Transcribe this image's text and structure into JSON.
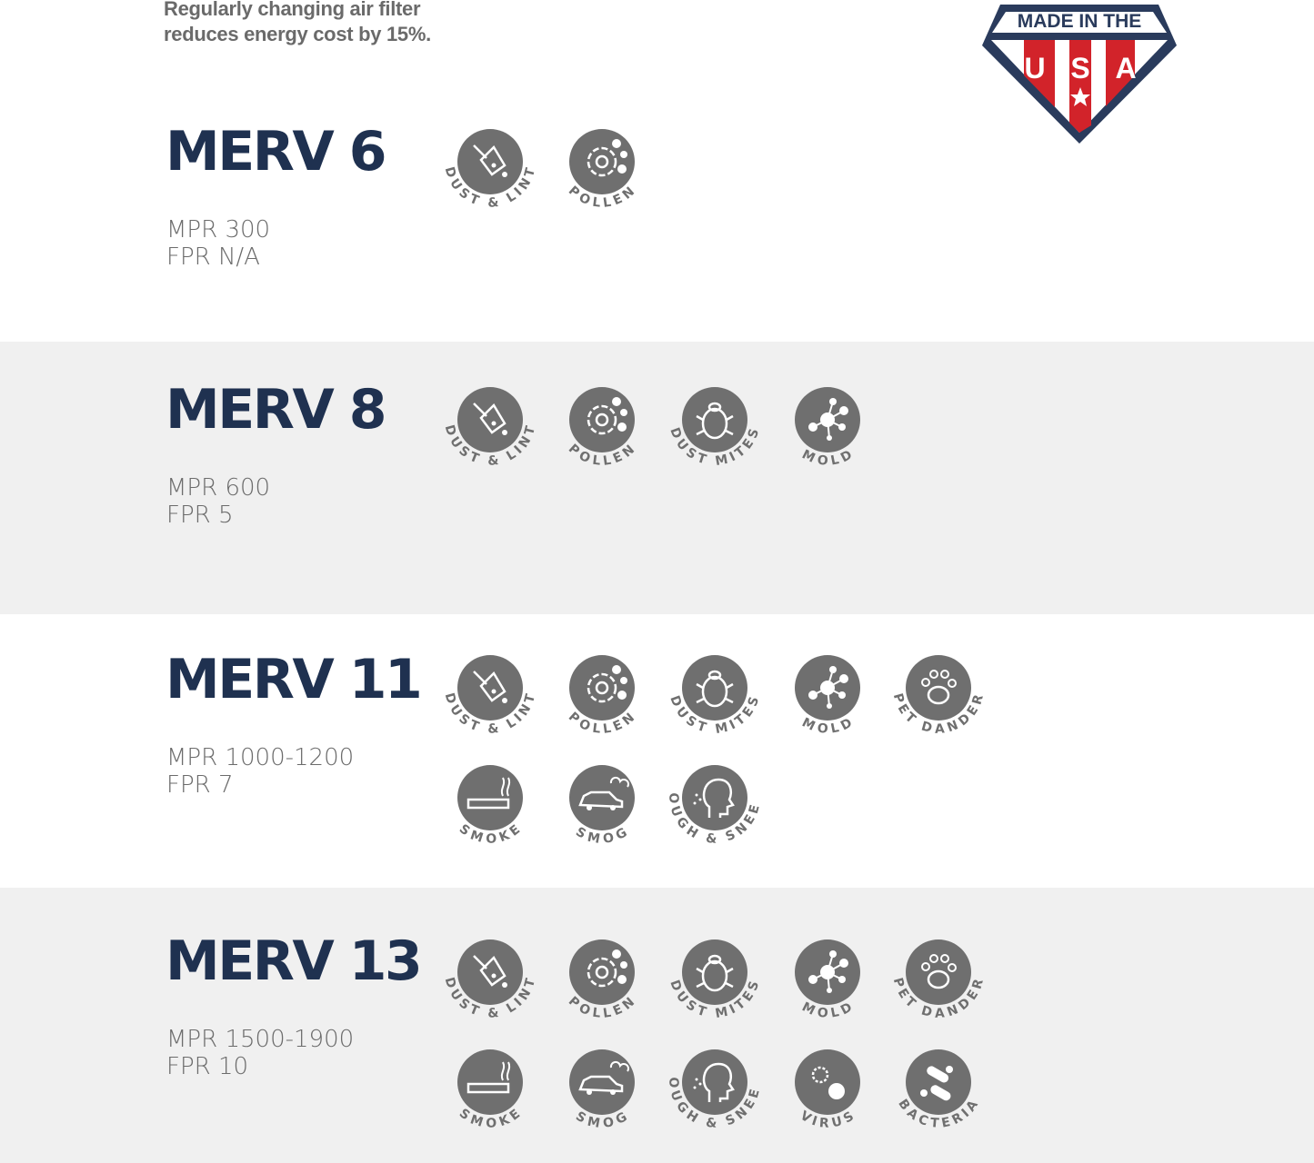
{
  "intro": {
    "line1": "Regularly changing air filter",
    "line2": "reduces energy cost by 15%."
  },
  "badge": {
    "top_text": "MADE IN THE",
    "letters": [
      "U",
      "S",
      "A"
    ],
    "colors": {
      "navy": "#2a3b5c",
      "red": "#d2232a"
    }
  },
  "colors": {
    "title": "#1f3150",
    "icon": "#6f6f6f",
    "band": "#f0f0f0"
  },
  "filters": [
    {
      "title": "MERV 6",
      "mpr": "MPR 300",
      "fpr": "FPR N/A",
      "icons": [
        [
          "dust-lint",
          "DUST & LINT"
        ],
        [
          "pollen",
          "POLLEN"
        ]
      ]
    },
    {
      "title": "MERV 8",
      "mpr": "MPR 600",
      "fpr": "FPR 5",
      "icons": [
        [
          "dust-lint",
          "DUST & LINT"
        ],
        [
          "pollen",
          "POLLEN"
        ],
        [
          "dust-mites",
          "DUST  MITES"
        ],
        [
          "mold",
          "MOLD"
        ]
      ]
    },
    {
      "title": "MERV 11",
      "mpr": "MPR 1000-1200",
      "fpr": "FPR 7",
      "icons": [
        [
          "dust-lint",
          "DUST & LINT"
        ],
        [
          "pollen",
          "POLLEN"
        ],
        [
          "dust-mites",
          "DUST  MITES"
        ],
        [
          "mold",
          "MOLD"
        ],
        [
          "pet-dander",
          "PET DANDER"
        ],
        [
          "smoke",
          "SMOKE"
        ],
        [
          "smog",
          "SMOG"
        ],
        [
          "cough-sneeze",
          "COUGH & SNEEZE"
        ]
      ]
    },
    {
      "title": "MERV 13",
      "mpr": "MPR 1500-1900",
      "fpr": "FPR 10",
      "icons": [
        [
          "dust-lint",
          "DUST & LINT"
        ],
        [
          "pollen",
          "POLLEN"
        ],
        [
          "dust-mites",
          "DUST  MITES"
        ],
        [
          "mold",
          "MOLD"
        ],
        [
          "pet-dander",
          "PET DANDER"
        ],
        [
          "smoke",
          "SMOKE"
        ],
        [
          "smog",
          "SMOG"
        ],
        [
          "cough-sneeze",
          "COUGH & SNEEZE"
        ],
        [
          "virus",
          "VIRUS"
        ],
        [
          "bacteria",
          "BACTERIA"
        ]
      ]
    }
  ]
}
